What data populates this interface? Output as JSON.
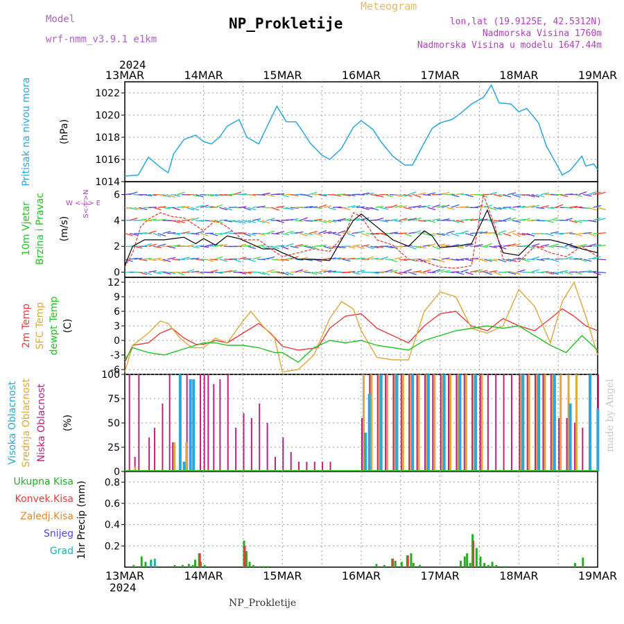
{
  "header": {
    "model_label": "Model",
    "model_name": "wrf-nmm_v3.9.1  e1km",
    "meteogram_label": "Meteogram",
    "station_title": "NP_Prokletije",
    "lonlat": "lon,lat (19.9125E, 42.5312N)",
    "elevation": "Nadmorska Visina 1760m",
    "model_elevation": "Nadmorska Visina u modelu 1647.44m"
  },
  "footer": {
    "station": "NP_Prokletije",
    "credit": "made by Angel"
  },
  "colors": {
    "model_label": "#b060d0",
    "meteogram_label": "#e8b860",
    "info_text": "#b040c0",
    "pressure": "#2aa6e0",
    "wind_black": "#000000",
    "wind_red": "#e83030",
    "temp_2m": "#e83a3a",
    "temp_sfc": "#e0a83a",
    "dewpt": "#22c322",
    "cloud_high": "#2aa6e0",
    "cloud_mid": "#e0a83a",
    "cloud_low": "#c0207e",
    "precip_total": "#22b022",
    "precip_conv": "#e83a3a",
    "precip_frz": "#e88830",
    "snow": "#4848e0",
    "grad": "#20b0b0"
  },
  "time_axis": {
    "year": "2024",
    "ticks": [
      "13MAR",
      "14MAR",
      "15MAR",
      "16MAR",
      "17MAR",
      "18MAR",
      "19MAR"
    ]
  },
  "panel_labels": {
    "pressure": {
      "title": "Pritisak na nivou mora",
      "unit": "(hPa)"
    },
    "wind": {
      "title1": "10m Vjetar",
      "title2": "Brzina i Pravac",
      "unit": "(m/s)",
      "compass": "W <-|-> E",
      "compass2": "S<-|->N"
    },
    "temp": {
      "t2m": "2m Temp",
      "sfc": "SFC Temp",
      "dew": "dewpt Temp",
      "unit": "(C)"
    },
    "cloud": {
      "high": "Visoka Oblacnost",
      "mid": "Srednja Oblacnost",
      "low": "Niska Oblacnost",
      "unit": "(%)"
    },
    "precip": {
      "total": "Ukupna Kisa",
      "conv": "Konvek.Kisa",
      "frz": "Zaledj.Kisa",
      "snow": "Snijeg",
      "grad": "Grad",
      "unit": "1hr Precip (mm)"
    }
  },
  "chart_data": [
    {
      "type": "line",
      "title": "Pritisak na nivou mora",
      "ylabel": "(hPa)",
      "x_unit": "days since 13MAR 00UTC",
      "ylim": [
        1014,
        1023
      ],
      "yticks": [
        1014,
        1016,
        1018,
        1020,
        1022
      ],
      "series": [
        {
          "name": "Pritisak na nivou mora",
          "x": [
            0,
            0.17,
            0.3,
            0.45,
            0.55,
            0.62,
            0.75,
            0.9,
            1.0,
            1.1,
            1.2,
            1.3,
            1.45,
            1.55,
            1.7,
            1.8,
            1.93,
            2.05,
            2.17,
            2.25,
            2.35,
            2.5,
            2.6,
            2.75,
            2.9,
            3.0,
            3.15,
            3.25,
            3.4,
            3.55,
            3.65,
            3.8,
            3.9,
            4.0,
            4.15,
            4.25,
            4.4,
            4.55,
            4.65,
            4.75,
            4.9,
            5.0,
            5.1,
            5.25,
            5.35,
            5.5,
            5.55,
            5.65,
            5.8,
            5.85,
            5.95,
            6.0
          ],
          "values": [
            1014.5,
            1014.6,
            1016.2,
            1015.3,
            1014.8,
            1016.5,
            1017.8,
            1018.2,
            1017.6,
            1017.4,
            1018.0,
            1019.0,
            1019.6,
            1018.0,
            1017.4,
            1018.9,
            1020.8,
            1019.4,
            1019.4,
            1018.6,
            1017.5,
            1016.4,
            1016.0,
            1017.0,
            1018.9,
            1019.5,
            1018.7,
            1017.6,
            1016.3,
            1015.5,
            1015.5,
            1017.5,
            1018.8,
            1019.3,
            1019.6,
            1020.1,
            1021.0,
            1021.6,
            1022.7,
            1021.1,
            1021.0,
            1020.3,
            1020.6,
            1019.3,
            1017.2,
            1015.3,
            1014.6,
            1015.0,
            1016.3,
            1015.4,
            1015.6,
            1015.1
          ]
        }
      ]
    },
    {
      "type": "line",
      "title": "10m Vjetar Brzina i Pravac",
      "ylabel": "(m/s)",
      "x_unit": "days since 13MAR 00UTC",
      "ylim": [
        -0.4,
        7
      ],
      "yticks": [
        0,
        2,
        4,
        6
      ],
      "series": [
        {
          "name": "black",
          "x": [
            0,
            0.1,
            0.25,
            0.5,
            0.75,
            0.9,
            1.0,
            1.15,
            1.3,
            1.45,
            1.6,
            1.75,
            1.9,
            2.0,
            2.2,
            2.4,
            2.6,
            2.75,
            2.9,
            3.0,
            3.2,
            3.4,
            3.6,
            3.8,
            3.9,
            4.0,
            4.2,
            4.4,
            4.6,
            4.8,
            5.0,
            5.2,
            5.4,
            5.6,
            5.8,
            6.0
          ],
          "values": [
            0.5,
            2.0,
            2.5,
            2.5,
            2.7,
            2.2,
            2.6,
            2.1,
            2.8,
            2.6,
            2.2,
            1.8,
            1.8,
            1.5,
            1.0,
            1.0,
            0.9,
            2.5,
            4.0,
            4.5,
            3.5,
            2.5,
            2.0,
            3.2,
            2.8,
            1.9,
            2.0,
            2.2,
            4.8,
            1.5,
            1.3,
            2.5,
            2.5,
            2.2,
            1.8,
            1.5
          ]
        },
        {
          "name": "red",
          "x": [
            0,
            0.1,
            0.2,
            0.3,
            0.45,
            0.6,
            0.75,
            0.9,
            1.0,
            1.15,
            1.3,
            1.5,
            1.7,
            1.9,
            2.0,
            2.2,
            2.4,
            2.6,
            2.8,
            2.9,
            3.0,
            3.2,
            3.4,
            3.6,
            3.8,
            4.0,
            4.2,
            4.4,
            4.55,
            4.7,
            4.8,
            5.0,
            5.2,
            5.4,
            5.6,
            5.8,
            6.0
          ],
          "values": [
            0.4,
            1.5,
            3.5,
            4.1,
            4.6,
            4.3,
            4.2,
            3.6,
            3.2,
            4.0,
            3.5,
            2.5,
            2.5,
            1.6,
            1.2,
            1.5,
            1.8,
            1.6,
            3.0,
            4.6,
            4.3,
            2.5,
            2.1,
            1.0,
            0.8,
            0.4,
            0.3,
            0.5,
            6.0,
            3.5,
            1.0,
            0.8,
            2.0,
            1.5,
            1.2,
            2.0,
            1.2
          ]
        }
      ]
    },
    {
      "type": "line",
      "title": "2m Temp / SFC Temp / dewpt Temp",
      "ylabel": "(C)",
      "x_unit": "days since 13MAR 00UTC",
      "ylim": [
        -7,
        13
      ],
      "yticks": [
        -6,
        -3,
        0,
        3,
        6,
        9,
        12
      ],
      "series": [
        {
          "name": "2m Temp",
          "x": [
            0,
            0.1,
            0.3,
            0.45,
            0.6,
            0.75,
            0.9,
            1.0,
            1.15,
            1.3,
            1.5,
            1.7,
            1.85,
            2.0,
            2.2,
            2.45,
            2.6,
            2.8,
            3.0,
            3.2,
            3.4,
            3.6,
            3.8,
            4.0,
            4.2,
            4.4,
            4.6,
            4.8,
            5.0,
            5.2,
            5.4,
            5.55,
            5.7,
            5.85,
            6.0
          ],
          "values": [
            -4.5,
            -1.0,
            -0.5,
            1.5,
            2.5,
            0.5,
            -0.8,
            -0.8,
            0.0,
            -0.5,
            1.5,
            3.5,
            1.5,
            -1.2,
            -2.0,
            -1.5,
            2.5,
            5.0,
            5.5,
            2.5,
            1.0,
            -0.5,
            3.0,
            5.5,
            6.0,
            3.0,
            2.0,
            4.5,
            3.0,
            2.0,
            4.5,
            6.5,
            5.0,
            3.0,
            2.0
          ]
        },
        {
          "name": "SFC Temp",
          "x": [
            0,
            0.1,
            0.3,
            0.45,
            0.55,
            0.7,
            0.85,
            1.0,
            1.15,
            1.3,
            1.5,
            1.6,
            1.75,
            1.9,
            2.0,
            2.2,
            2.4,
            2.6,
            2.75,
            2.9,
            3.0,
            3.2,
            3.4,
            3.6,
            3.8,
            4.0,
            4.2,
            4.4,
            4.6,
            4.8,
            5.0,
            5.2,
            5.4,
            5.55,
            5.7,
            5.85,
            6.0
          ],
          "values": [
            -6.5,
            -1.0,
            1.5,
            4.0,
            3.5,
            0.5,
            -1.5,
            -1.5,
            0.5,
            -0.5,
            4.0,
            6.0,
            3.0,
            0.5,
            -6.5,
            -6.0,
            -3.0,
            4.5,
            8.0,
            6.5,
            2.0,
            -3.5,
            -4.0,
            -4.0,
            6.0,
            10.0,
            9.0,
            2.5,
            1.5,
            3.0,
            10.5,
            7.0,
            -0.5,
            8.0,
            12.0,
            5.0,
            -3.0
          ]
        },
        {
          "name": "dewpt Temp",
          "x": [
            0,
            0.1,
            0.3,
            0.5,
            0.7,
            0.9,
            1.0,
            1.15,
            1.3,
            1.5,
            1.7,
            1.9,
            2.0,
            2.2,
            2.4,
            2.6,
            2.8,
            3.0,
            3.2,
            3.4,
            3.6,
            3.8,
            4.0,
            4.2,
            4.4,
            4.6,
            4.8,
            5.0,
            5.2,
            5.4,
            5.6,
            5.8,
            6.0
          ],
          "values": [
            -4.0,
            -1.5,
            -2.5,
            -3.0,
            -2.0,
            -1.0,
            -0.5,
            -0.5,
            -1.0,
            -1.0,
            -1.5,
            -2.5,
            -2.5,
            -4.5,
            -1.5,
            0.0,
            -0.5,
            0.0,
            -1.0,
            -1.5,
            -2.0,
            0.0,
            1.0,
            2.0,
            2.5,
            3.0,
            2.5,
            3.0,
            1.0,
            -1.0,
            -2.5,
            1.0,
            -2.0
          ]
        }
      ]
    },
    {
      "type": "bar",
      "title": "Visoka / Srednja / Niska Oblacnost",
      "ylabel": "(%)",
      "x_unit": "days since 13MAR 00UTC",
      "ylim": [
        0,
        100
      ],
      "yticks": [
        0,
        25,
        50,
        75,
        100
      ],
      "series": [
        {
          "name": "Niska Oblacnost",
          "x": [
            0.05,
            0.12,
            0.17,
            0.3,
            0.37,
            0.47,
            0.56,
            0.6,
            0.7,
            0.78,
            0.83,
            0.95,
            1.0,
            1.05,
            1.12,
            1.2,
            1.3,
            1.4,
            1.5,
            1.6,
            1.7,
            1.8,
            1.9,
            2.0,
            2.1,
            2.2,
            2.3,
            2.4,
            2.5,
            2.6,
            3.0,
            3.1,
            3.2,
            3.3,
            3.4,
            3.5,
            3.6,
            3.7,
            3.8,
            3.9,
            4.0,
            4.1,
            4.2,
            4.3,
            4.4,
            4.5,
            4.6,
            4.7,
            4.8,
            4.9,
            5.0,
            5.1,
            5.2,
            5.3,
            5.4,
            5.5,
            5.6,
            5.7,
            5.8,
            5.9,
            6.0
          ],
          "values": [
            100,
            15,
            100,
            35,
            45,
            70,
            100,
            30,
            50,
            100,
            25,
            100,
            100,
            100,
            90,
            95,
            100,
            45,
            60,
            55,
            70,
            50,
            15,
            35,
            20,
            10,
            10,
            10,
            10,
            10,
            55,
            100,
            100,
            100,
            100,
            100,
            100,
            100,
            100,
            100,
            100,
            100,
            100,
            100,
            100,
            100,
            100,
            100,
            100,
            100,
            100,
            100,
            100,
            100,
            100,
            55,
            55,
            50,
            45,
            50,
            100
          ]
        },
        {
          "name": "Srednja Oblacnost",
          "x": [
            0.1,
            0.6,
            0.75,
            3.0,
            3.1,
            3.2,
            3.3,
            3.4,
            3.5,
            3.6,
            3.7,
            3.8,
            3.9,
            4.0,
            4.1,
            4.2,
            4.3,
            4.4,
            4.5,
            5.0,
            5.1,
            5.2,
            5.3,
            5.4,
            5.5,
            5.6,
            5.7
          ],
          "values": [
            5,
            30,
            30,
            100,
            100,
            100,
            100,
            100,
            100,
            100,
            100,
            100,
            100,
            100,
            100,
            100,
            100,
            100,
            100,
            100,
            100,
            100,
            100,
            100,
            100,
            100,
            100
          ]
        },
        {
          "name": "Visoka Oblacnost",
          "x": [
            0.65,
            0.7,
            0.78,
            0.82,
            3.0,
            3.05,
            3.2,
            3.4,
            3.6,
            3.8,
            4.0,
            4.2,
            4.4,
            5.0,
            5.2,
            5.4,
            5.6,
            5.85,
            5.95
          ],
          "values": [
            100,
            10,
            95,
            95,
            40,
            80,
            100,
            100,
            100,
            100,
            100,
            100,
            100,
            100,
            100,
            100,
            70,
            100,
            65
          ]
        }
      ]
    },
    {
      "type": "bar",
      "title": "1hr Precip",
      "ylabel": "1hr Precip (mm)",
      "x_unit": "days since 13MAR 00UTC",
      "ylim": [
        0,
        0.9
      ],
      "yticks": [
        0.2,
        0.4,
        0.6,
        0.8
      ],
      "series": [
        {
          "name": "Ukupna Kisa",
          "x": [
            0.1,
            0.2,
            0.25,
            0.32,
            0.4,
            0.62,
            0.72,
            0.8,
            0.85,
            0.88,
            0.93,
            0.95,
            1.0,
            1.5,
            1.53,
            1.57,
            1.62,
            1.7,
            1.75,
            1.8,
            3.18,
            3.28,
            3.38,
            3.42,
            3.5,
            3.57,
            3.62,
            3.65,
            3.73,
            4.25,
            4.3,
            4.33,
            4.37,
            4.4,
            4.45,
            4.5,
            4.55,
            4.6,
            4.65,
            4.7,
            4.8,
            5.7,
            5.8
          ],
          "values": [
            0.02,
            0.1,
            0.05,
            0.07,
            0.01,
            0.02,
            0.02,
            0.03,
            0.02,
            0.07,
            0.13,
            0.05,
            0.02,
            0.25,
            0.15,
            0.05,
            0.02,
            0.01,
            0.01,
            0.01,
            0.03,
            0.02,
            0.08,
            0.06,
            0.05,
            0.11,
            0.13,
            0.04,
            0.02,
            0.06,
            0.1,
            0.13,
            0.04,
            0.31,
            0.18,
            0.1,
            0.04,
            0.02,
            0.05,
            0.02,
            0.01,
            0.04,
            0.09
          ]
        },
        {
          "name": "Konvek.Kisa",
          "x": [
            0.93,
            1.5,
            3.38,
            3.57,
            4.4
          ],
          "values": [
            0.13,
            0.2,
            0.08,
            0.11,
            0.25
          ]
        },
        {
          "name": "Grad",
          "x": [
            0.3,
            0.35
          ],
          "values": [
            0.05,
            0.08
          ]
        }
      ]
    }
  ]
}
